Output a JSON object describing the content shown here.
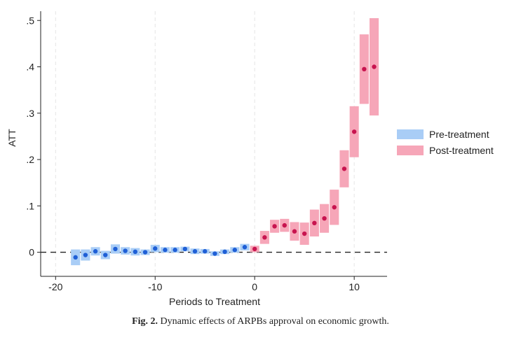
{
  "chart_data": {
    "type": "scatter",
    "title": "",
    "xlabel": "Periods to Treatment",
    "ylabel": "ATT",
    "xlim": [
      -21.5,
      13.3
    ],
    "ylim": [
      -0.052,
      0.52
    ],
    "xticks": [
      -20,
      -10,
      0,
      10
    ],
    "xtick_labels": [
      "-20",
      "-10",
      "0",
      "10"
    ],
    "yticks": [
      0,
      0.1,
      0.2,
      0.3,
      0.4,
      0.5
    ],
    "ytick_labels": [
      "0",
      ".1",
      ".2",
      ".3",
      ".4",
      ".5"
    ],
    "grid": "vertical dashed at x ticks",
    "reference_line": 0,
    "legend_position": "right",
    "series": [
      {
        "name": "Pre-treatment",
        "color_band": "#a9cdf6",
        "color_point": "#1f5fd6",
        "points": [
          {
            "x": -18,
            "y": -0.011,
            "lo": -0.028,
            "hi": 0.006
          },
          {
            "x": -17,
            "y": -0.006,
            "lo": -0.018,
            "hi": 0.006
          },
          {
            "x": -16,
            "y": 0.002,
            "lo": -0.007,
            "hi": 0.011
          },
          {
            "x": -15,
            "y": -0.006,
            "lo": -0.015,
            "hi": 0.003
          },
          {
            "x": -14,
            "y": 0.007,
            "lo": -0.003,
            "hi": 0.017
          },
          {
            "x": -13,
            "y": 0.003,
            "lo": -0.005,
            "hi": 0.011
          },
          {
            "x": -12,
            "y": 0.001,
            "lo": -0.007,
            "hi": 0.009
          },
          {
            "x": -11,
            "y": 0.0,
            "lo": -0.006,
            "hi": 0.006
          },
          {
            "x": -10,
            "y": 0.008,
            "lo": 0.0,
            "hi": 0.016
          },
          {
            "x": -9,
            "y": 0.005,
            "lo": -0.001,
            "hi": 0.011
          },
          {
            "x": -8,
            "y": 0.005,
            "lo": -0.001,
            "hi": 0.011
          },
          {
            "x": -7,
            "y": 0.007,
            "lo": 0.002,
            "hi": 0.012
          },
          {
            "x": -6,
            "y": 0.002,
            "lo": -0.004,
            "hi": 0.008
          },
          {
            "x": -5,
            "y": 0.002,
            "lo": -0.003,
            "hi": 0.007
          },
          {
            "x": -4,
            "y": -0.003,
            "lo": -0.008,
            "hi": 0.002
          },
          {
            "x": -3,
            "y": 0.001,
            "lo": -0.004,
            "hi": 0.006
          },
          {
            "x": -2,
            "y": 0.005,
            "lo": -0.001,
            "hi": 0.011
          },
          {
            "x": -1,
            "y": 0.011,
            "lo": 0.004,
            "hi": 0.018
          }
        ]
      },
      {
        "name": "Post-treatment",
        "color_band": "#f6a6b8",
        "color_point": "#c8144f",
        "points": [
          {
            "x": 0,
            "y": 0.007,
            "lo": 0.0,
            "hi": 0.014
          },
          {
            "x": 1,
            "y": 0.032,
            "lo": 0.018,
            "hi": 0.046
          },
          {
            "x": 2,
            "y": 0.056,
            "lo": 0.042,
            "hi": 0.07
          },
          {
            "x": 3,
            "y": 0.058,
            "lo": 0.044,
            "hi": 0.072
          },
          {
            "x": 4,
            "y": 0.045,
            "lo": 0.025,
            "hi": 0.065
          },
          {
            "x": 5,
            "y": 0.04,
            "lo": 0.016,
            "hi": 0.064
          },
          {
            "x": 6,
            "y": 0.063,
            "lo": 0.034,
            "hi": 0.092
          },
          {
            "x": 7,
            "y": 0.073,
            "lo": 0.042,
            "hi": 0.104
          },
          {
            "x": 8,
            "y": 0.097,
            "lo": 0.059,
            "hi": 0.135
          },
          {
            "x": 9,
            "y": 0.18,
            "lo": 0.14,
            "hi": 0.22
          },
          {
            "x": 10,
            "y": 0.26,
            "lo": 0.205,
            "hi": 0.315
          },
          {
            "x": 11,
            "y": 0.395,
            "lo": 0.32,
            "hi": 0.47
          },
          {
            "x": 12,
            "y": 0.4,
            "lo": 0.295,
            "hi": 0.505
          }
        ]
      }
    ]
  },
  "caption": {
    "label": "Fig. 2.",
    "text": "Dynamic effects of ARPBs approval on economic growth."
  }
}
